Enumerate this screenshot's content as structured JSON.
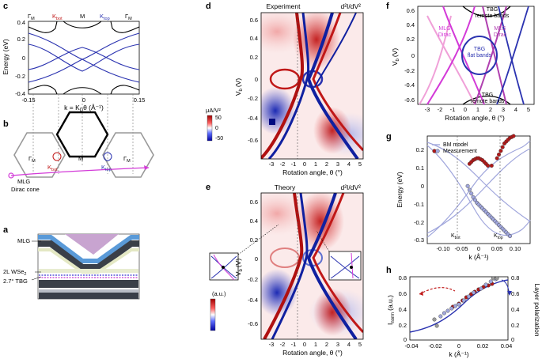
{
  "panel_labels": {
    "a": "a",
    "b": "b",
    "c": "c",
    "d": "d",
    "e": "e",
    "f": "f",
    "g": "g",
    "h": "h"
  },
  "panel_c": {
    "ylabel": "Energy (eV)",
    "xlabel_prefix": "k = K",
    "xlabel_suffix": "θ (Å⁻¹)",
    "xlabel_sub": "D",
    "yticks": [
      "0.4",
      "0.2",
      "0",
      "-0.2",
      "-0.4"
    ],
    "xticks": [
      "-0.15",
      "0",
      "0.15"
    ],
    "labels": {
      "gamma": "Γ",
      "kbot": "K",
      "top": "K",
      "m": "M",
      "sub_m": "M",
      "sub_bot": "bot",
      "sub_top": "top"
    }
  },
  "panel_b": {
    "gamma": "Γ",
    "sub_m": "M",
    "m": "M",
    "kbot": "K",
    "ktop": "K",
    "sub_bot": "bot",
    "sub_top": "top",
    "mlg_line1": "MLG",
    "mlg_line2": "Dirac cone"
  },
  "panel_a": {
    "mlg": "MLG",
    "wse2": "2L WSe",
    "wse2_sub": "2",
    "tbg": "2.7° TBG"
  },
  "panel_d": {
    "title": "Experiment",
    "unit": "d²I/dV²",
    "ylabel": "V",
    "ylabel_sub": "b",
    "ylabel_suffix": "(V)",
    "xlabel": "Rotation angle, θ (°)",
    "yticks": [
      "0.6",
      "0.4",
      "0.2",
      "0",
      "-0.2",
      "-0.4",
      "-0.6"
    ],
    "xticks": [
      "-3",
      "-2",
      "-1",
      "0",
      "1",
      "2",
      "3",
      "4",
      "5"
    ],
    "colorbar_unit": "μA/V²",
    "colorbar_ticks": [
      "50",
      "0",
      "-50"
    ]
  },
  "panel_e": {
    "title": "Theory",
    "unit": "d²I/dV²",
    "ylabel": "V",
    "ylabel_sub": "b",
    "ylabel_suffix": "(V)",
    "xlabel": "Rotation angle, θ (°)",
    "yticks": [
      "0.6",
      "0.4",
      "0.2",
      "0",
      "-0.2",
      "-0.4",
      "-0.6"
    ],
    "xticks": [
      "-3",
      "-2",
      "-1",
      "0",
      "1",
      "2",
      "3",
      "4",
      "5"
    ],
    "colorbar_unit": "(a.u.)"
  },
  "panel_f": {
    "ylabel": "V",
    "ylabel_sub": "b",
    "ylabel_suffix": "(V)",
    "xlabel": "Rotation angle, θ (°)",
    "yticks": [
      "0.6",
      "0.4",
      "0.2",
      "0",
      "-0.2",
      "-0.4",
      "-0.6"
    ],
    "xticks": [
      "-3",
      "-2",
      "-1",
      "0",
      "1",
      "2",
      "3",
      "4",
      "5"
    ],
    "labels": {
      "tbg_remote_top_1": "TBG",
      "tbg_remote_top_2": "remote bands",
      "mlg_dirac_1_l1": "MLG",
      "mlg_dirac_1_l2": "Dirac",
      "mlg_dirac_2_l1": "MLG",
      "mlg_dirac_2_l2": "Dirac",
      "tbg_flat_1": "TBG",
      "tbg_flat_2": "flat bands",
      "tbg_remote_bot_1": "TBG",
      "tbg_remote_bot_2": "remote bands"
    }
  },
  "panel_g": {
    "ylabel": "Energy (eV)",
    "xlabel": "k (Å⁻¹)",
    "yticks": [
      "0.2",
      "0.1",
      "0",
      "-0.1",
      "-0.2",
      "-0.3"
    ],
    "xticks": [
      "-0.10",
      "-0.05",
      "0",
      "0.05",
      "0.10"
    ],
    "legend": {
      "model": "BM model",
      "measurement": "Measurement"
    },
    "kbot": "K",
    "ktop": "K",
    "sub_bot": "bot",
    "sub_top": "top"
  },
  "panel_h": {
    "ylabel": "I",
    "ylabel_sub": "norm",
    "ylabel_suffix": "(a.u.)",
    "ylabel_right": "Layer polarization",
    "xlabel": "k (Å⁻¹)",
    "yticks": [
      "0.8",
      "0.6",
      "0.4",
      "0.2",
      "0"
    ],
    "yticks_right": [
      "0.8",
      "0.6",
      "0.4",
      "0.2",
      "0"
    ],
    "xticks": [
      "-0.04",
      "-0.02",
      "0",
      "0.02",
      "0.04"
    ]
  },
  "chart_data": [
    {
      "type": "line",
      "panel": "g",
      "xlabel": "k (Å⁻¹)",
      "ylabel": "Energy (eV)",
      "xlim": [
        -0.14,
        0.14
      ],
      "ylim": [
        -0.32,
        0.26
      ],
      "series": [
        {
          "name": "Measurement",
          "kind": "scatter",
          "color": "#b01818",
          "x": [
            -0.025,
            -0.02,
            -0.015,
            -0.01,
            -0.005,
            0,
            0.005,
            0.01,
            0.015,
            0.02,
            0.025,
            0.035,
            0.05,
            0.055,
            0.06,
            0.065,
            0.07,
            0.075,
            0.08,
            0.085,
            0.09,
            0.095
          ],
          "y": [
            0.11,
            0.12,
            0.13,
            0.135,
            0.14,
            0.14,
            0.135,
            0.13,
            0.12,
            0.11,
            0.1,
            0.1,
            0.14,
            0.16,
            0.18,
            0.2,
            0.22,
            0.23,
            0.24,
            0.25,
            0.255,
            0.26
          ]
        },
        {
          "name": "Measurement",
          "kind": "scatter",
          "color": "#a0a6dc",
          "x": [
            -0.03,
            -0.025,
            -0.02,
            -0.015,
            -0.01,
            -0.005,
            0,
            0.005,
            0.01,
            0.015,
            0.02,
            0.025,
            0.03,
            0.035,
            0.04,
            0.045,
            0.05,
            0.055,
            0.06,
            0.065,
            0.07,
            0.075,
            0.08,
            0.085
          ],
          "y": [
            -0.01,
            -0.03,
            -0.05,
            -0.07,
            -0.085,
            -0.1,
            -0.11,
            -0.12,
            -0.13,
            -0.14,
            -0.15,
            -0.16,
            -0.17,
            -0.18,
            -0.19,
            -0.2,
            -0.21,
            -0.22,
            -0.23,
            -0.24,
            -0.25,
            -0.26,
            -0.27,
            -0.28
          ]
        }
      ]
    },
    {
      "type": "line",
      "panel": "h",
      "xlabel": "k (Å⁻¹)",
      "xlim": [
        -0.04,
        0.04
      ],
      "ylim": [
        0,
        0.8
      ],
      "series": [
        {
          "kind": "scatter",
          "color": "#b01818",
          "x": [
            -0.005,
            0,
            0.003,
            0.006,
            0.01,
            0.013,
            0.016,
            0.02,
            0.024,
            0.027
          ],
          "y": [
            0.42,
            0.46,
            0.5,
            0.54,
            0.58,
            0.61,
            0.64,
            0.67,
            0.69,
            0.71
          ]
        },
        {
          "kind": "scatter",
          "color": "#a0a6dc",
          "x": [
            -0.015,
            -0.012,
            -0.009,
            -0.006,
            -0.003,
            0.0,
            0.004,
            0.008,
            0.012,
            0.018,
            0.022,
            0.026,
            0.03
          ],
          "y": [
            0.3,
            0.34,
            0.37,
            0.4,
            0.43,
            0.45,
            0.5,
            0.55,
            0.6,
            0.65,
            0.7,
            0.74,
            0.77
          ]
        },
        {
          "kind": "scatter",
          "color": "#999999",
          "x": [
            -0.02,
            -0.018,
            0.028,
            0.031
          ],
          "y": [
            0.26,
            0.18,
            0.78,
            0.78
          ]
        }
      ]
    }
  ]
}
